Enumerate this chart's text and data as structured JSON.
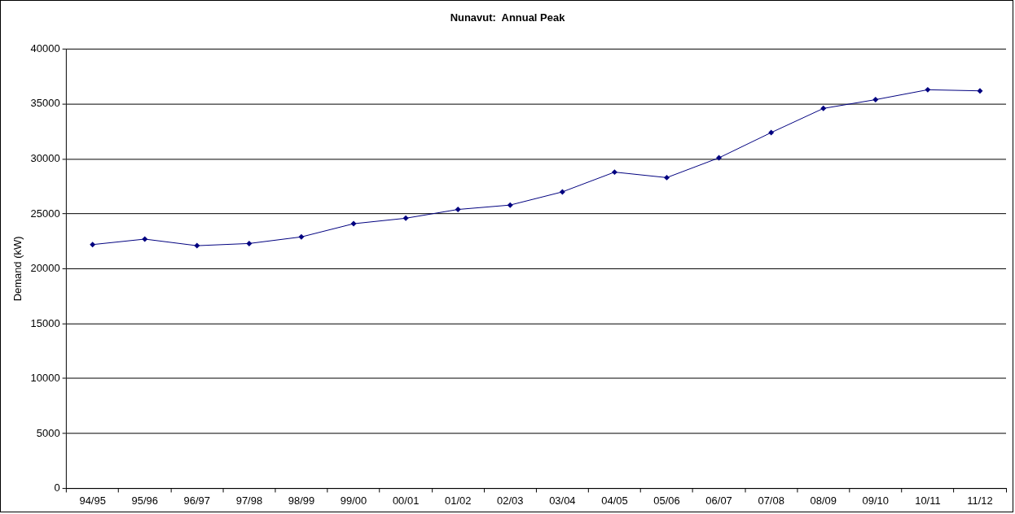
{
  "chart_data": {
    "type": "line",
    "title": "Nunavut:  Annual Peak",
    "ylabel": "Demand (kW)",
    "categories": [
      "94/95",
      "95/96",
      "96/97",
      "97/98",
      "98/99",
      "99/00",
      "00/01",
      "01/02",
      "02/03",
      "03/04",
      "04/05",
      "05/06",
      "06/07",
      "07/08",
      "08/09",
      "09/10",
      "10/11",
      "11/12"
    ],
    "series": [
      {
        "color": "#000080",
        "values": [
          22200,
          22700,
          22100,
          22300,
          22900,
          24100,
          24600,
          25400,
          25800,
          27000,
          28800,
          28300,
          30100,
          32400,
          34600,
          35400,
          36300,
          36200
        ]
      }
    ],
    "ylim": [
      0,
      40000
    ],
    "yticks": [
      0,
      5000,
      10000,
      15000,
      20000,
      25000,
      30000,
      35000,
      40000
    ],
    "grid": "y",
    "legend": false,
    "marker": "diamond",
    "line_style": "solid"
  }
}
